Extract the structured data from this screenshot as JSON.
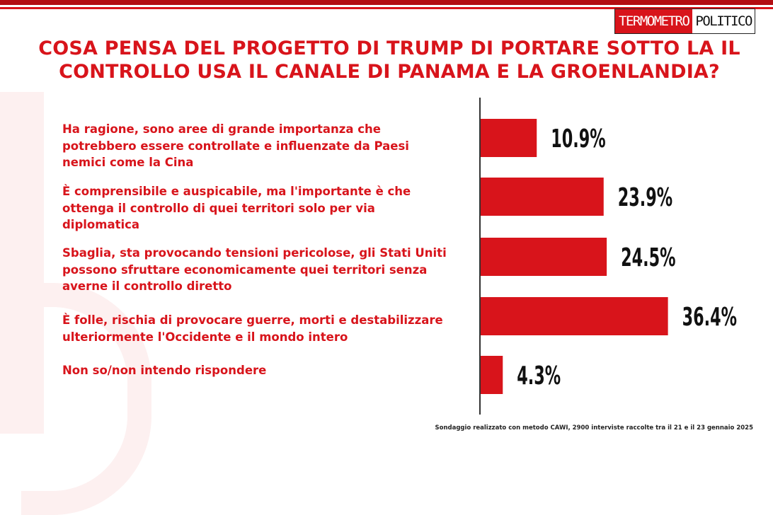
{
  "brand": {
    "logo_part1": "TERMOMETRO",
    "logo_part2": "POLITICO",
    "accent": "#d8141b"
  },
  "title_line1": "COSA PENSA DEL PROGETTO DI TRUMP DI PORTARE SOTTO LA IL",
  "title_line2": "CONTROLLO USA IL CANALE DI PANAMA E LA GROENLANDIA?",
  "footer": "Sondaggio realizzato con metodo CAWI, 2900 interviste raccolte tra il 21 e il 23 gennaio 2025",
  "chart_data": {
    "type": "bar",
    "orientation": "horizontal",
    "title": "COSA PENSA DEL PROGETTO DI TRUMP DI PORTARE SOTTO LA IL CONTROLLO USA IL CANALE DI PANAMA E LA GROENLANDIA?",
    "categories": [
      "Ha ragione, sono aree di grande importanza che potrebbero essere controllate e influenzate da Paesi nemici come la Cina",
      "È comprensibile e auspicabile, ma l'importante è che ottenga il controllo di quei territori solo per via diplomatica",
      "Sbaglia, sta provocando tensioni pericolose, gli Stati Uniti possono sfruttare economicamente quei territori senza averne il controllo diretto",
      "È folle, rischia di provocare guerre, morti e destabilizzare ulteriormente l'Occidente e il mondo intero",
      "Non so/non intendo rispondere"
    ],
    "category_lines": [
      [
        "Ha ragione, sono aree di grande importanza che",
        "potrebbero essere controllate e influenzate da Paesi",
        "nemici come la Cina"
      ],
      [
        "È comprensibile e auspicabile, ma l'importante è che",
        "ottenga il controllo di quei territori solo per via",
        "diplomatica"
      ],
      [
        "Sbaglia, sta provocando tensioni pericolose, gli Stati Uniti",
        "possono sfruttare economicamente quei territori senza",
        "averne il controllo diretto"
      ],
      [
        "È folle, rischia di provocare guerre, morti e destabilizzare",
        "ulteriormente l'Occidente e il mondo intero"
      ],
      [
        "Non so/non intendo rispondere"
      ]
    ],
    "values": [
      10.9,
      23.9,
      24.5,
      36.4,
      4.3
    ],
    "value_labels": [
      "10.9%",
      "23.9%",
      "24.5%",
      "36.4%",
      "4.3%"
    ],
    "unit": "%",
    "bar_color": "#d8141b",
    "grid": false,
    "legend": "none"
  }
}
